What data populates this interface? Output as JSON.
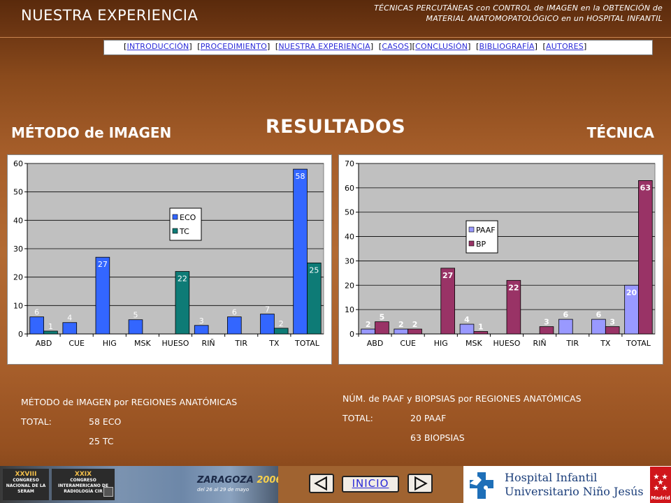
{
  "header": {
    "section_title": "NUESTRA EXPERIENCIA",
    "subtitle_line1": "TÉCNICAS PERCUTÁNEAS con CONTROL de IMAGEN en la OBTENCIÓN de",
    "subtitle_line2": "MATERIAL ANATOMOPATOLÓGICO en un HOSPITAL INFANTIL"
  },
  "nav": {
    "items": [
      "INTRODUCCIÓN",
      "PROCEDIMIENTO",
      "NUESTRA EXPERIENCIA",
      "CASOS",
      "CONCLUSIÓN",
      "BIBLIOGRAFÍA",
      "AUTORES"
    ]
  },
  "main": {
    "title": "RESULTADOS",
    "left_heading": "MÉTODO de IMAGEN",
    "right_heading": "TÉCNICA"
  },
  "chart_data": [
    {
      "type": "bar",
      "categories": [
        "ABD",
        "CUE",
        "HIG",
        "MSK",
        "HUESO",
        "RIÑ",
        "TIR",
        "TX",
        "TOTAL"
      ],
      "series": [
        {
          "name": "ECO",
          "values": [
            6,
            4,
            27,
            5,
            0,
            3,
            6,
            7,
            58
          ],
          "labels": [
            "6",
            "4",
            "27",
            "5",
            "",
            "3",
            "6",
            "7",
            "58"
          ],
          "color": "#3366ff"
        },
        {
          "name": "TC",
          "values": [
            1,
            0,
            0,
            0,
            22,
            0,
            0,
            2,
            25
          ],
          "labels": [
            "1",
            "",
            "",
            "",
            "22",
            "",
            "",
            "2",
            "25"
          ],
          "color": "#0e7b76"
        }
      ],
      "ylim": [
        0,
        60
      ],
      "yticks": [
        0,
        10,
        20,
        30,
        40,
        50,
        60
      ],
      "grid": true,
      "legend": "center",
      "plot_bg": "#c0c0c0"
    },
    {
      "type": "bar",
      "categories": [
        "ABD",
        "CUE",
        "HIG",
        "MSK",
        "HUESO",
        "RIÑ",
        "TIR",
        "TX",
        "TOTAL"
      ],
      "series": [
        {
          "name": "PAAF",
          "values": [
            2,
            2,
            0,
            4,
            0,
            0,
            6,
            6,
            20
          ],
          "labels": [
            "2",
            "2",
            "",
            "4",
            "",
            "",
            "6",
            "6",
            "20"
          ],
          "color": "#9999ff"
        },
        {
          "name": "BP",
          "values": [
            5,
            2,
            27,
            1,
            22,
            3,
            0,
            3,
            63
          ],
          "labels": [
            "5",
            "2",
            "27",
            "1",
            "22",
            "3",
            "",
            "3",
            "63"
          ],
          "color": "#993366"
        }
      ],
      "ylim": [
        0,
        70
      ],
      "yticks": [
        0,
        10,
        20,
        30,
        40,
        50,
        60,
        70
      ],
      "grid": true,
      "legend": "center",
      "plot_bg": "#c0c0c0"
    }
  ],
  "notes": {
    "left": {
      "title": "MÉTODO de IMAGEN por REGIONES ANATÓMICAS",
      "total_label": "TOTAL:",
      "line1": "58 ECO",
      "line2": "25 TC"
    },
    "right": {
      "title": "NÚM. de PAAF y BIOPSIAS por REGIONES ANATÓMICAS",
      "total_label": "TOTAL:",
      "line1": "20 PAAF",
      "line2": "63 BIOPSIAS"
    }
  },
  "footer": {
    "congress_left_num": "XXVIII",
    "congress_left_text": "CONGRESO NACIONAL DE LA SERAM",
    "congress_right_num": "XXIX",
    "congress_right_text": "CONGRESO INTERAMERICANO DE RADIOLOGÍA CIR",
    "city": "ZARAGOZA",
    "year": "2006",
    "dates": "del 26 al 29 de mayo",
    "home_label": "INICIO",
    "hospital_line1": "Hospital Infantil",
    "hospital_line2": "Universitario Niño Jesús",
    "madrid_text": "Madrid"
  }
}
